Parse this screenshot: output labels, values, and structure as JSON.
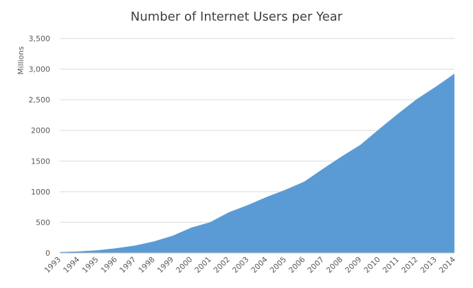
{
  "chart_data": {
    "type": "area",
    "title": "Number of Internet Users per Year",
    "y_label": "Millions",
    "categories": [
      "1993",
      "1994",
      "1995",
      "1996",
      "1997",
      "1998",
      "1999",
      "2000",
      "2001",
      "2002",
      "2003",
      "2004",
      "2005",
      "2006",
      "2007",
      "2008",
      "2009",
      "2010",
      "2011",
      "2012",
      "2013",
      "2014"
    ],
    "values": [
      14,
      25,
      44,
      77,
      120,
      188,
      281,
      414,
      502,
      665,
      781,
      913,
      1030,
      1162,
      1373,
      1575,
      1766,
      2023,
      2273,
      2511,
      2712,
      2925
    ],
    "color": "#5b9bd5",
    "ylim": [
      0,
      3500
    ],
    "yticks": [
      0,
      500,
      1000,
      1500,
      2000,
      {
        "value": 2500,
        "label": "2,500"
      },
      {
        "value": 3000,
        "label": "3,000"
      },
      {
        "value": 3500,
        "label": "3,500"
      }
    ],
    "grid": true
  }
}
